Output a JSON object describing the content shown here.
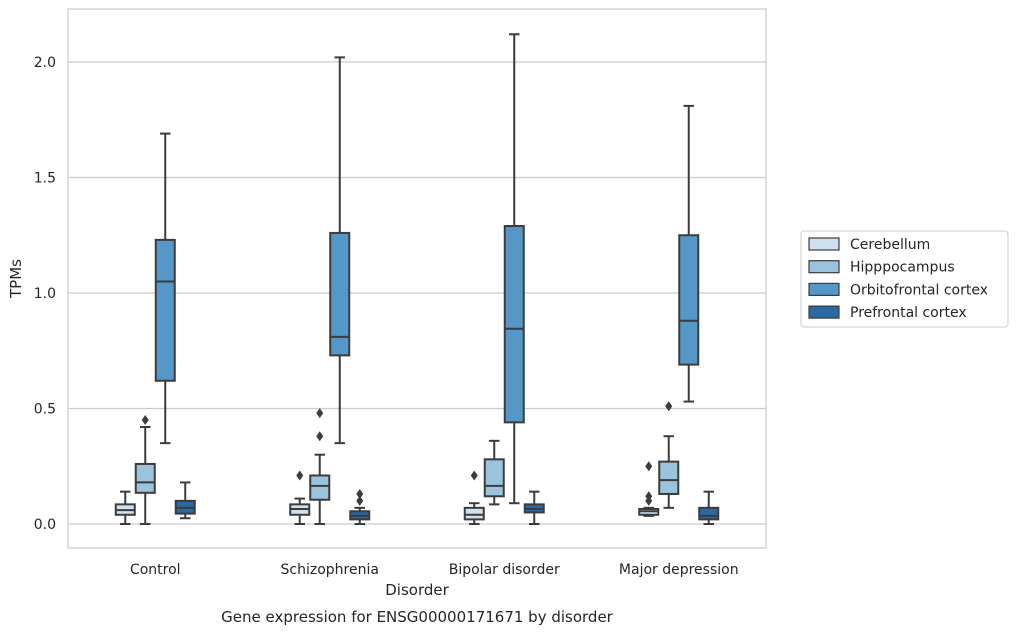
{
  "chart_data": {
    "type": "boxplot",
    "title": "Gene expression for ENSG00000171671 by disorder",
    "xlabel": "Disorder",
    "ylabel": "TPMs",
    "ylim": [
      -0.1,
      2.23
    ],
    "yticks": [
      0.0,
      0.5,
      1.0,
      1.5,
      2.0
    ],
    "ytick_labels": [
      "0.0",
      "0.5",
      "1.0",
      "1.5",
      "2.0"
    ],
    "grid": "horizontal",
    "legend_position": "right",
    "categories": [
      "Control",
      "Schizophrenia",
      "Bipolar disorder",
      "Major depression"
    ],
    "series": [
      {
        "name": "Cerebellum",
        "color": "#cfe1f1",
        "boxes": [
          {
            "min": 0.0,
            "q1": 0.04,
            "median": 0.06,
            "q3": 0.085,
            "max": 0.14,
            "outliers": []
          },
          {
            "min": 0.0,
            "q1": 0.04,
            "median": 0.065,
            "q3": 0.085,
            "max": 0.11,
            "outliers": [
              0.21
            ]
          },
          {
            "min": 0.0,
            "q1": 0.02,
            "median": 0.04,
            "q3": 0.07,
            "max": 0.09,
            "outliers": [
              0.21
            ]
          },
          {
            "min": 0.035,
            "q1": 0.04,
            "median": 0.055,
            "q3": 0.065,
            "max": 0.07,
            "outliers": [
              0.1,
              0.12,
              0.25
            ]
          }
        ]
      },
      {
        "name": "Hipppocampus",
        "color": "#9bc3de",
        "boxes": [
          {
            "min": 0.0,
            "q1": 0.135,
            "median": 0.18,
            "q3": 0.26,
            "max": 0.42,
            "outliers": [
              0.45
            ]
          },
          {
            "min": 0.0,
            "q1": 0.105,
            "median": 0.165,
            "q3": 0.21,
            "max": 0.3,
            "outliers": [
              0.38,
              0.48
            ]
          },
          {
            "min": 0.085,
            "q1": 0.12,
            "median": 0.165,
            "q3": 0.28,
            "max": 0.36,
            "outliers": []
          },
          {
            "min": 0.07,
            "q1": 0.13,
            "median": 0.19,
            "q3": 0.27,
            "max": 0.38,
            "outliers": [
              0.51
            ]
          }
        ]
      },
      {
        "name": "Orbitofrontal cortex",
        "color": "#5597c6",
        "boxes": [
          {
            "min": 0.35,
            "q1": 0.62,
            "median": 1.05,
            "q3": 1.23,
            "max": 1.69,
            "outliers": []
          },
          {
            "min": 0.35,
            "q1": 0.73,
            "median": 0.81,
            "q3": 1.26,
            "max": 2.02,
            "outliers": []
          },
          {
            "min": 0.09,
            "q1": 0.44,
            "median": 0.845,
            "q3": 1.29,
            "max": 2.12,
            "outliers": []
          },
          {
            "min": 0.53,
            "q1": 0.69,
            "median": 0.88,
            "q3": 1.25,
            "max": 1.81,
            "outliers": []
          }
        ]
      },
      {
        "name": "Prefrontal cortex",
        "color": "#2a69a3",
        "boxes": [
          {
            "min": 0.025,
            "q1": 0.045,
            "median": 0.07,
            "q3": 0.1,
            "max": 0.18,
            "outliers": []
          },
          {
            "min": 0.0,
            "q1": 0.02,
            "median": 0.035,
            "q3": 0.055,
            "max": 0.07,
            "outliers": [
              0.1,
              0.13
            ]
          },
          {
            "min": 0.0,
            "q1": 0.05,
            "median": 0.065,
            "q3": 0.085,
            "max": 0.14,
            "outliers": []
          },
          {
            "min": 0.0,
            "q1": 0.02,
            "median": 0.035,
            "q3": 0.07,
            "max": 0.14,
            "outliers": []
          }
        ]
      }
    ]
  }
}
